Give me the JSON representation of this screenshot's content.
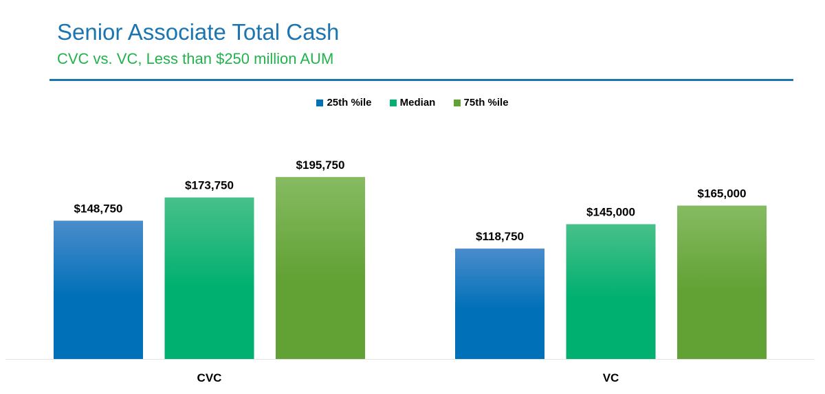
{
  "chart_data": {
    "type": "bar",
    "title": "Senior Associate Total Cash",
    "subtitle": "CVC vs. VC, Less than $250 million AUM",
    "categories": [
      "CVC",
      "VC"
    ],
    "series": [
      {
        "name": "25th %ile",
        "values": [
          148750,
          118750
        ],
        "labels": [
          "$148,750",
          "$118,750"
        ],
        "color": "#0070b8",
        "color_top": "#4a8ccb"
      },
      {
        "name": "Median",
        "values": [
          173750,
          145000
        ],
        "labels": [
          "$173,750",
          "$145,000"
        ],
        "color": "#00b070",
        "color_top": "#48c08a"
      },
      {
        "name": "75th %ile",
        "values": [
          195750,
          165000
        ],
        "labels": [
          "$195,750",
          "$165,000"
        ],
        "color": "#62a235",
        "color_top": "#86bb62"
      }
    ],
    "xlabel": "",
    "ylabel": "",
    "ylim": [
      0,
      250000
    ],
    "grid": false,
    "legend": "top-center",
    "title_color": "#1a75b0",
    "subtitle_color": "#22b24c"
  }
}
